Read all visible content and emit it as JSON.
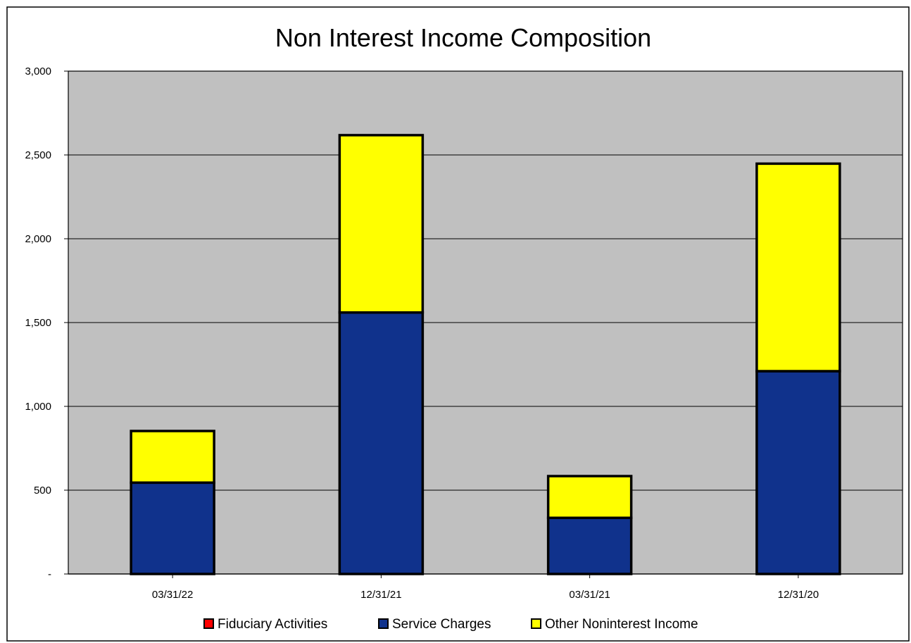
{
  "chart_data": {
    "type": "bar",
    "stacked": true,
    "title": "Non Interest Income Composition",
    "xlabel": "",
    "ylabel": "",
    "categories": [
      "03/31/22",
      "12/31/21",
      "03/31/21",
      "12/31/20"
    ],
    "series": [
      {
        "name": "Fiduciary Activities",
        "color": "#ff0000",
        "values": [
          0,
          0,
          0,
          0
        ]
      },
      {
        "name": "Service Charges",
        "color": "#10328c",
        "values": [
          545,
          1560,
          335,
          1210
        ]
      },
      {
        "name": "Other Noninterest Income",
        "color": "#ffff00",
        "values": [
          308,
          1058,
          249,
          1238
        ]
      }
    ],
    "ylim": [
      0,
      3000
    ],
    "yticks": [
      0,
      500,
      1000,
      1500,
      2000,
      2500,
      3000
    ],
    "ytick_labels": [
      "-",
      "500",
      "1,000",
      "1,500",
      "2,000",
      "2,500",
      "3,000"
    ],
    "grid": true,
    "legend_position": "bottom",
    "plot_background": "#c0c0c0"
  }
}
